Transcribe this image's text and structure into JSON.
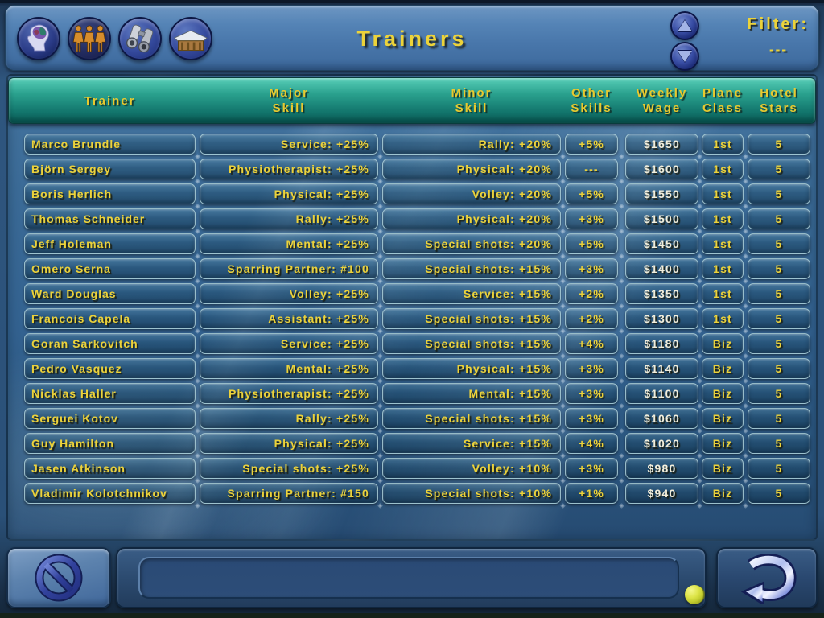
{
  "title": "Trainers",
  "colors": {
    "accent_yellow": "#ecd23a",
    "wage_text": "#f2eedb",
    "header_teal_top": "#58cfb8",
    "header_teal_bottom": "#0a5f59",
    "panel_blue": "#4876aa",
    "button_navy": "#1b2a6e"
  },
  "topbar": {
    "nav_icons": [
      "mind-icon",
      "players-icon",
      "binoculars-icon",
      "clubhouse-icon"
    ],
    "filter_label": "Filter:",
    "filter_value": "---"
  },
  "table": {
    "columns": [
      {
        "line1": "Trainer",
        "line2": ""
      },
      {
        "line1": "Major",
        "line2": "Skill"
      },
      {
        "line1": "Minor",
        "line2": "Skill"
      },
      {
        "line1": "Other",
        "line2": "Skills"
      },
      {
        "line1": "Weekly",
        "line2": "Wage"
      },
      {
        "line1": "Plane",
        "line2": "Class"
      },
      {
        "line1": "Hotel",
        "line2": "Stars"
      }
    ],
    "rows": [
      {
        "trainer": "Marco Brundle",
        "major": "Service: +25%",
        "minor": "Rally: +20%",
        "other": "+5%",
        "wage": "$1650",
        "plane": "1st",
        "hotel": "5"
      },
      {
        "trainer": "Björn Sergey",
        "major": "Physiotherapist: +25%",
        "minor": "Physical: +20%",
        "other": "---",
        "wage": "$1600",
        "plane": "1st",
        "hotel": "5"
      },
      {
        "trainer": "Boris Herlich",
        "major": "Physical: +25%",
        "minor": "Volley: +20%",
        "other": "+5%",
        "wage": "$1550",
        "plane": "1st",
        "hotel": "5"
      },
      {
        "trainer": "Thomas Schneider",
        "major": "Rally: +25%",
        "minor": "Physical: +20%",
        "other": "+3%",
        "wage": "$1500",
        "plane": "1st",
        "hotel": "5"
      },
      {
        "trainer": "Jeff Holeman",
        "major": "Mental: +25%",
        "minor": "Special shots: +20%",
        "other": "+5%",
        "wage": "$1450",
        "plane": "1st",
        "hotel": "5"
      },
      {
        "trainer": "Omero Serna",
        "major": "Sparring Partner: #100",
        "minor": "Special shots: +15%",
        "other": "+3%",
        "wage": "$1400",
        "plane": "1st",
        "hotel": "5"
      },
      {
        "trainer": "Ward Douglas",
        "major": "Volley: +25%",
        "minor": "Service: +15%",
        "other": "+2%",
        "wage": "$1350",
        "plane": "1st",
        "hotel": "5"
      },
      {
        "trainer": "Francois Capela",
        "major": "Assistant: +25%",
        "minor": "Special shots: +15%",
        "other": "+2%",
        "wage": "$1300",
        "plane": "1st",
        "hotel": "5"
      },
      {
        "trainer": "Goran Sarkovitch",
        "major": "Service: +25%",
        "minor": "Special shots: +15%",
        "other": "+4%",
        "wage": "$1180",
        "plane": "Biz",
        "hotel": "5"
      },
      {
        "trainer": "Pedro Vasquez",
        "major": "Mental: +25%",
        "minor": "Physical: +15%",
        "other": "+3%",
        "wage": "$1140",
        "plane": "Biz",
        "hotel": "5"
      },
      {
        "trainer": "Nicklas Haller",
        "major": "Physiotherapist: +25%",
        "minor": "Mental: +15%",
        "other": "+3%",
        "wage": "$1100",
        "plane": "Biz",
        "hotel": "5"
      },
      {
        "trainer": "Serguei Kotov",
        "major": "Rally: +25%",
        "minor": "Special shots: +15%",
        "other": "+3%",
        "wage": "$1060",
        "plane": "Biz",
        "hotel": "5"
      },
      {
        "trainer": "Guy Hamilton",
        "major": "Physical: +25%",
        "minor": "Service: +15%",
        "other": "+4%",
        "wage": "$1020",
        "plane": "Biz",
        "hotel": "5"
      },
      {
        "trainer": "Jasen Atkinson",
        "major": "Special shots: +25%",
        "minor": "Volley: +10%",
        "other": "+3%",
        "wage": "$980",
        "plane": "Biz",
        "hotel": "5"
      },
      {
        "trainer": "Vladimir Kolotchnikov",
        "major": "Sparring Partner: #150",
        "minor": "Special shots: +10%",
        "other": "+1%",
        "wage": "$940",
        "plane": "Biz",
        "hotel": "5"
      }
    ]
  },
  "footer": {
    "message": "",
    "icons": [
      "block-icon",
      "tennis-ball-icon",
      "return-icon"
    ]
  }
}
